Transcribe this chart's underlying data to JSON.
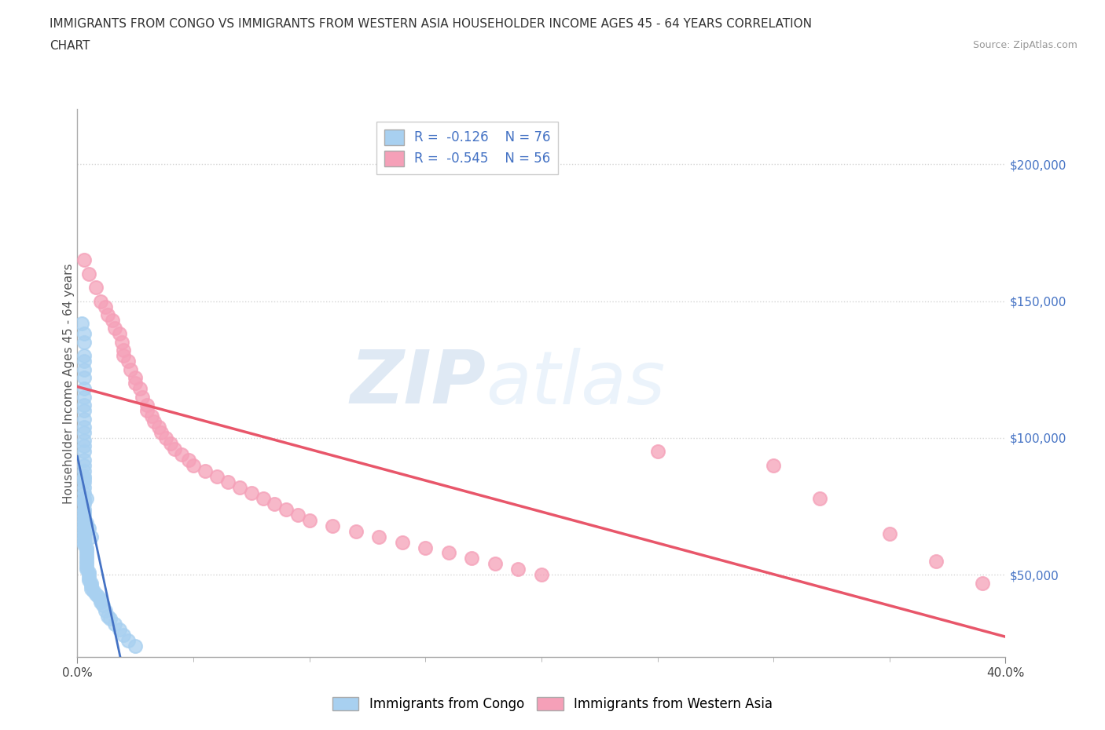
{
  "title_line1": "IMMIGRANTS FROM CONGO VS IMMIGRANTS FROM WESTERN ASIA HOUSEHOLDER INCOME AGES 45 - 64 YEARS CORRELATION",
  "title_line2": "CHART",
  "source": "Source: ZipAtlas.com",
  "ylabel": "Householder Income Ages 45 - 64 years",
  "xlim": [
    0.0,
    0.4
  ],
  "ylim": [
    20000,
    220000
  ],
  "ytick_labels": [
    "$50,000",
    "$100,000",
    "$150,000",
    "$200,000"
  ],
  "ytick_values": [
    50000,
    100000,
    150000,
    200000
  ],
  "congo_color": "#a8d0f0",
  "western_asia_color": "#f5a0b8",
  "congo_R": -0.126,
  "congo_N": 76,
  "western_asia_R": -0.545,
  "western_asia_N": 56,
  "legend_label_congo": "Immigrants from Congo",
  "legend_label_western_asia": "Immigrants from Western Asia",
  "watermark_zip": "ZIP",
  "watermark_atlas": "atlas",
  "ytick_color": "#4472c4",
  "background_color": "#ffffff",
  "grid_color": "#d0d0d0",
  "congo_trendline_color": "#4472c4",
  "western_asia_trendline_color": "#e8566a",
  "congo_scatter_x": [
    0.002,
    0.003,
    0.003,
    0.003,
    0.003,
    0.003,
    0.003,
    0.003,
    0.003,
    0.003,
    0.003,
    0.003,
    0.003,
    0.003,
    0.003,
    0.003,
    0.003,
    0.003,
    0.003,
    0.003,
    0.003,
    0.003,
    0.003,
    0.003,
    0.003,
    0.003,
    0.003,
    0.003,
    0.003,
    0.003,
    0.003,
    0.003,
    0.003,
    0.003,
    0.003,
    0.003,
    0.003,
    0.003,
    0.003,
    0.003,
    0.004,
    0.004,
    0.004,
    0.004,
    0.004,
    0.004,
    0.004,
    0.004,
    0.004,
    0.005,
    0.005,
    0.005,
    0.005,
    0.006,
    0.006,
    0.006,
    0.007,
    0.008,
    0.009,
    0.01,
    0.01,
    0.011,
    0.012,
    0.013,
    0.014,
    0.016,
    0.018,
    0.02,
    0.022,
    0.025,
    0.003,
    0.003,
    0.004,
    0.004,
    0.005,
    0.006
  ],
  "congo_scatter_y": [
    142000,
    138000,
    135000,
    130000,
    128000,
    125000,
    122000,
    118000,
    115000,
    112000,
    110000,
    107000,
    104000,
    102000,
    99000,
    97000,
    95000,
    92000,
    90000,
    88000,
    86000,
    84000,
    82000,
    80000,
    78000,
    76000,
    74000,
    73000,
    72000,
    71000,
    70000,
    69000,
    68000,
    67000,
    66000,
    65000,
    64000,
    63000,
    62000,
    61000,
    60000,
    59000,
    58000,
    57000,
    56000,
    55000,
    54000,
    53000,
    52000,
    51000,
    50000,
    49000,
    48000,
    47000,
    46000,
    45000,
    44000,
    43000,
    42000,
    41000,
    40000,
    39000,
    37000,
    35000,
    34000,
    32000,
    30000,
    28000,
    26000,
    24000,
    85000,
    77000,
    78000,
    69000,
    67000,
    64000
  ],
  "western_asia_scatter_x": [
    0.003,
    0.005,
    0.008,
    0.01,
    0.012,
    0.013,
    0.015,
    0.016,
    0.018,
    0.019,
    0.02,
    0.02,
    0.022,
    0.023,
    0.025,
    0.025,
    0.027,
    0.028,
    0.03,
    0.03,
    0.032,
    0.033,
    0.035,
    0.036,
    0.038,
    0.04,
    0.042,
    0.045,
    0.048,
    0.05,
    0.055,
    0.06,
    0.065,
    0.07,
    0.075,
    0.08,
    0.085,
    0.09,
    0.095,
    0.1,
    0.11,
    0.12,
    0.13,
    0.14,
    0.15,
    0.16,
    0.17,
    0.18,
    0.19,
    0.2,
    0.25,
    0.3,
    0.32,
    0.35,
    0.37,
    0.39
  ],
  "western_asia_scatter_y": [
    165000,
    160000,
    155000,
    150000,
    148000,
    145000,
    143000,
    140000,
    138000,
    135000,
    132000,
    130000,
    128000,
    125000,
    122000,
    120000,
    118000,
    115000,
    112000,
    110000,
    108000,
    106000,
    104000,
    102000,
    100000,
    98000,
    96000,
    94000,
    92000,
    90000,
    88000,
    86000,
    84000,
    82000,
    80000,
    78000,
    76000,
    74000,
    72000,
    70000,
    68000,
    66000,
    64000,
    62000,
    60000,
    58000,
    56000,
    54000,
    52000,
    50000,
    95000,
    90000,
    78000,
    65000,
    55000,
    47000
  ]
}
